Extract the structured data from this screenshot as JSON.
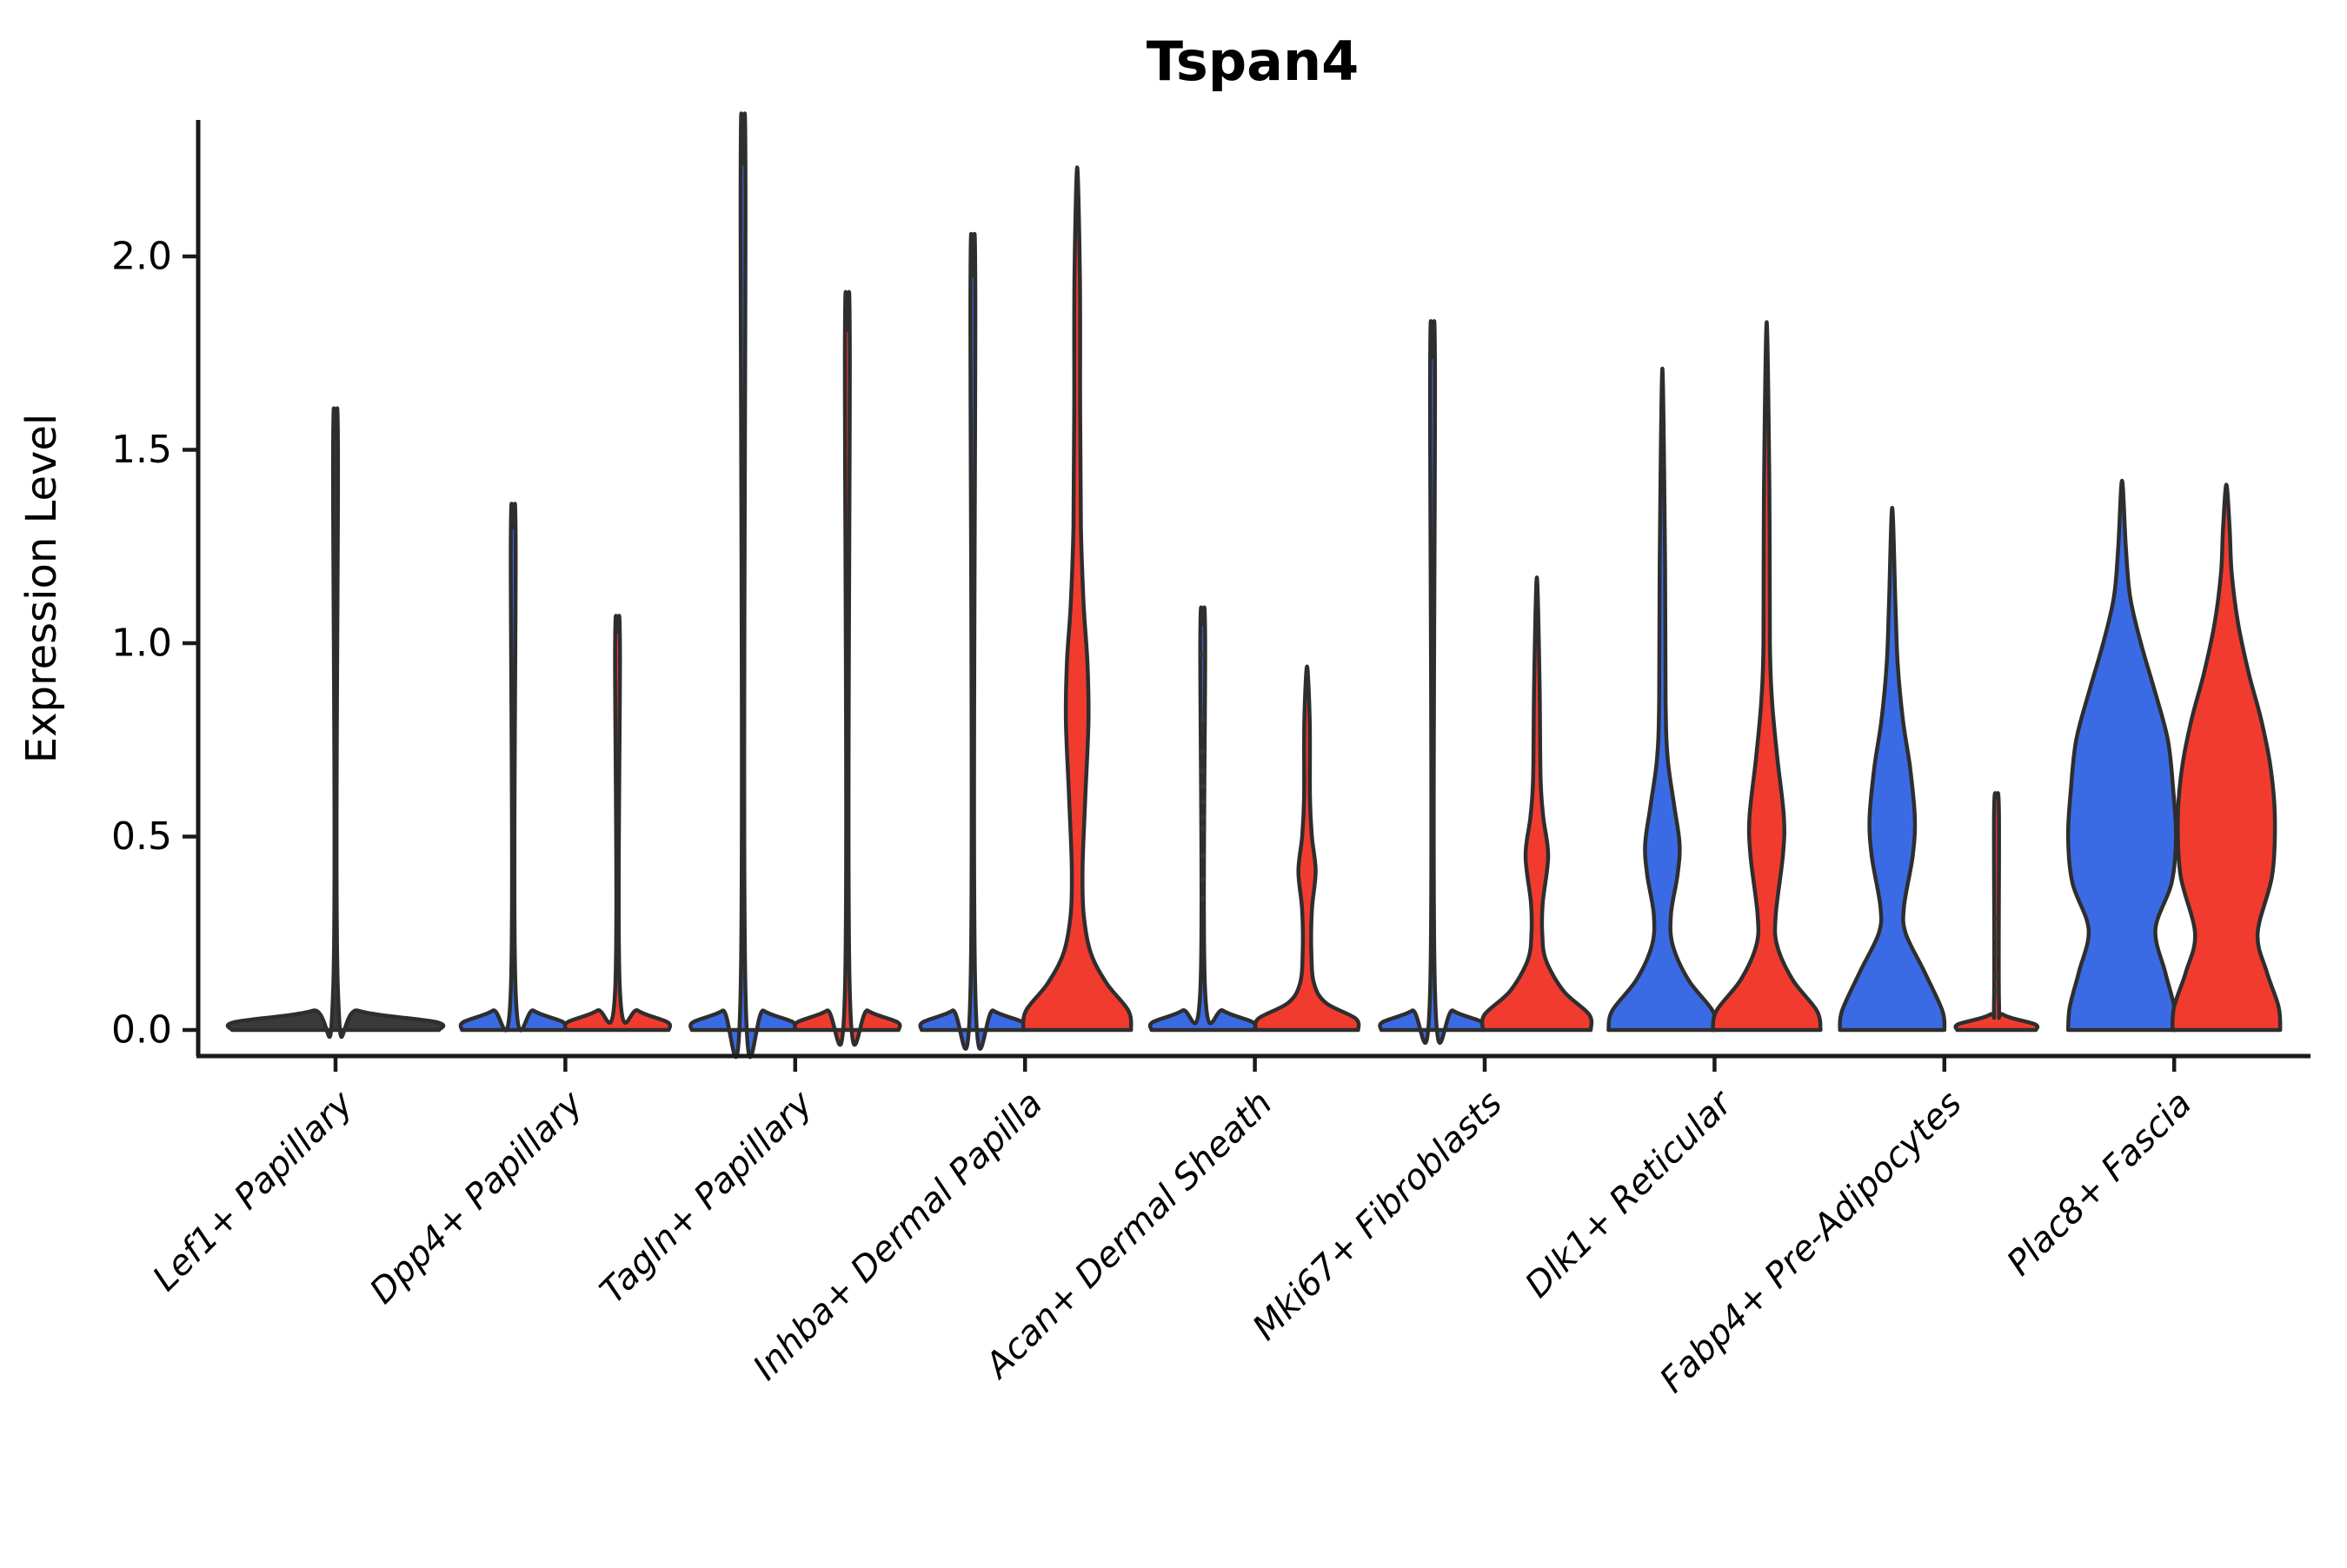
{
  "chart_data": {
    "type": "violin",
    "title": "Tspan4",
    "ylabel": "Expression Level",
    "xlabel": "",
    "grid": false,
    "legend": null,
    "ylim": [
      -0.06,
      2.36
    ],
    "yticks": [
      0.0,
      0.5,
      1.0,
      1.5,
      2.0
    ],
    "ytick_labels": [
      "0.0",
      "0.5",
      "1.0",
      "1.5",
      "2.0"
    ],
    "x_tick_rotation_deg": 45,
    "colors": {
      "blue": "#3B6BE4",
      "red": "#F23B2F",
      "dark": "#3a3a3a",
      "outline": "#2E2E2E",
      "axis": "#1a1a1a"
    },
    "categories": [
      "Lef1+ Papillary",
      "Dpp4+ Papillary",
      "Tagln+ Papillary",
      "Inhba+ Dermal Papilla",
      "Acan+ Dermal Sheath",
      "Mki67+ Fibroblasts",
      "Dlk1+ Reticular",
      "Fabp4+ Pre-Adipocytes",
      "Plac8+ Fascia"
    ],
    "violins": [
      {
        "category_index": 0,
        "category": "Lef1+ Papillary",
        "group": "single",
        "color": "dark",
        "offset_units": 0,
        "max_expression": 1.53,
        "profile": [
          [
            0,
            1.92
          ],
          [
            0.02,
            1.88
          ],
          [
            0.05,
            0.42
          ],
          [
            0.1,
            0.045
          ],
          [
            1.49,
            0.045
          ],
          [
            1.53,
            0
          ]
        ],
        "dots": []
      },
      {
        "category_index": 1,
        "category": "Dpp4+ Papillary",
        "group": "A",
        "color": "blue",
        "offset_units": -1,
        "max_expression": 1.3,
        "profile": [
          [
            0,
            0.95
          ],
          [
            0.02,
            0.93
          ],
          [
            0.05,
            0.38
          ],
          [
            0.1,
            0.045
          ],
          [
            1.26,
            0.045
          ],
          [
            1.3,
            0
          ]
        ],
        "dots": []
      },
      {
        "category_index": 1,
        "category": "Dpp4+ Papillary",
        "group": "B",
        "color": "red",
        "offset_units": 1,
        "max_expression": 1.03,
        "profile": [
          [
            0,
            0.95
          ],
          [
            0.02,
            0.93
          ],
          [
            0.05,
            0.38
          ],
          [
            0.1,
            0.045
          ],
          [
            0.99,
            0.045
          ],
          [
            1.03,
            0
          ]
        ],
        "dots": []
      },
      {
        "category_index": 2,
        "category": "Tagln+ Papillary",
        "group": "A",
        "color": "blue",
        "offset_units": -1,
        "max_expression": 2.24,
        "profile": [
          [
            0,
            0.95
          ],
          [
            0.02,
            0.93
          ],
          [
            0.05,
            0.38
          ],
          [
            0.1,
            0.045
          ],
          [
            2.2,
            0.045
          ],
          [
            2.24,
            0
          ]
        ],
        "dots": []
      },
      {
        "category_index": 2,
        "category": "Tagln+ Papillary",
        "group": "B",
        "color": "red",
        "offset_units": 1,
        "max_expression": 1.81,
        "profile": [
          [
            0,
            0.95
          ],
          [
            0.02,
            0.93
          ],
          [
            0.05,
            0.38
          ],
          [
            0.1,
            0.045
          ],
          [
            1.77,
            0.045
          ],
          [
            1.81,
            0
          ]
        ],
        "dots": []
      },
      {
        "category_index": 3,
        "category": "Inhba+ Dermal Papilla",
        "group": "A",
        "color": "blue",
        "offset_units": -1,
        "max_expression": 1.95,
        "profile": [
          [
            0,
            0.95
          ],
          [
            0.02,
            0.93
          ],
          [
            0.05,
            0.38
          ],
          [
            0.1,
            0.045
          ],
          [
            1.91,
            0.045
          ],
          [
            1.95,
            0
          ]
        ],
        "dots": []
      },
      {
        "category_index": 3,
        "category": "Inhba+ Dermal Papilla",
        "group": "B",
        "color": "red",
        "offset_units": 1,
        "max_expression": 2.23,
        "profile": [
          [
            0,
            1.0
          ],
          [
            0.05,
            0.95
          ],
          [
            0.12,
            0.55
          ],
          [
            0.2,
            0.25
          ],
          [
            0.3,
            0.12
          ],
          [
            0.42,
            0.1
          ],
          [
            0.6,
            0.15
          ],
          [
            0.8,
            0.21
          ],
          [
            0.95,
            0.19
          ],
          [
            1.1,
            0.12
          ],
          [
            1.3,
            0.07
          ],
          [
            1.6,
            0.055
          ],
          [
            1.95,
            0.05
          ],
          [
            2.23,
            0
          ]
        ],
        "dots": []
      },
      {
        "category_index": 4,
        "category": "Acan+ Dermal Sheath",
        "group": "A",
        "color": "blue",
        "offset_units": -1,
        "max_expression": 1.05,
        "profile": [
          [
            0,
            0.95
          ],
          [
            0.02,
            0.93
          ],
          [
            0.05,
            0.38
          ],
          [
            0.1,
            0.045
          ],
          [
            1.01,
            0.045
          ],
          [
            1.05,
            0
          ]
        ],
        "dots": [
          0.34,
          0.39,
          0.45,
          0.52,
          0.55,
          0.59,
          0.63,
          0.67,
          0.72,
          0.8,
          0.97
        ]
      },
      {
        "category_index": 4,
        "category": "Acan+ Dermal Sheath",
        "group": "B",
        "color": "red",
        "offset_units": 1,
        "max_expression": 0.94,
        "profile": [
          [
            0,
            0.95
          ],
          [
            0.03,
            0.9
          ],
          [
            0.07,
            0.35
          ],
          [
            0.12,
            0.13
          ],
          [
            0.2,
            0.08
          ],
          [
            0.31,
            0.09
          ],
          [
            0.41,
            0.16
          ],
          [
            0.5,
            0.09
          ],
          [
            0.6,
            0.055
          ],
          [
            0.8,
            0.05
          ],
          [
            0.94,
            0
          ]
        ],
        "dots": []
      },
      {
        "category_index": 5,
        "category": "Mki67+ Fibroblasts",
        "group": "A",
        "color": "blue",
        "offset_units": -1,
        "max_expression": 1.74,
        "profile": [
          [
            0,
            0.95
          ],
          [
            0.02,
            0.93
          ],
          [
            0.05,
            0.38
          ],
          [
            0.1,
            0.045
          ],
          [
            1.7,
            0.045
          ],
          [
            1.74,
            0
          ]
        ],
        "dots": []
      },
      {
        "category_index": 5,
        "category": "Mki67+ Fibroblasts",
        "group": "B",
        "color": "red",
        "offset_units": 1,
        "max_expression": 1.17,
        "profile": [
          [
            0,
            1.0
          ],
          [
            0.04,
            0.97
          ],
          [
            0.1,
            0.5
          ],
          [
            0.18,
            0.17
          ],
          [
            0.25,
            0.1
          ],
          [
            0.33,
            0.11
          ],
          [
            0.45,
            0.21
          ],
          [
            0.55,
            0.12
          ],
          [
            0.65,
            0.07
          ],
          [
            0.9,
            0.05
          ],
          [
            1.17,
            0
          ]
        ],
        "dots": []
      },
      {
        "category_index": 6,
        "category": "Dlk1+ Reticular",
        "group": "A",
        "color": "blue",
        "offset_units": -1,
        "max_expression": 1.71,
        "profile": [
          [
            0,
            1.0
          ],
          [
            0.05,
            0.93
          ],
          [
            0.13,
            0.48
          ],
          [
            0.22,
            0.19
          ],
          [
            0.3,
            0.16
          ],
          [
            0.4,
            0.28
          ],
          [
            0.48,
            0.32
          ],
          [
            0.58,
            0.22
          ],
          [
            0.7,
            0.1
          ],
          [
            0.85,
            0.06
          ],
          [
            1.2,
            0.05
          ],
          [
            1.71,
            0
          ]
        ],
        "dots": []
      },
      {
        "category_index": 6,
        "category": "Dlk1+ Reticular",
        "group": "B",
        "color": "red",
        "offset_units": 1,
        "max_expression": 1.83,
        "profile": [
          [
            0,
            1.0
          ],
          [
            0.05,
            0.93
          ],
          [
            0.13,
            0.48
          ],
          [
            0.22,
            0.19
          ],
          [
            0.3,
            0.17
          ],
          [
            0.45,
            0.3
          ],
          [
            0.55,
            0.32
          ],
          [
            0.7,
            0.2
          ],
          [
            0.85,
            0.1
          ],
          [
            1.0,
            0.06
          ],
          [
            1.4,
            0.05
          ],
          [
            1.83,
            0
          ]
        ],
        "dots": []
      },
      {
        "category_index": 7,
        "category": "Fabp4+ Pre-Adipocytes",
        "group": "A",
        "color": "blue",
        "offset_units": -1,
        "max_expression": 1.35,
        "profile": [
          [
            0,
            0.97
          ],
          [
            0.05,
            0.93
          ],
          [
            0.15,
            0.6
          ],
          [
            0.25,
            0.25
          ],
          [
            0.32,
            0.22
          ],
          [
            0.45,
            0.38
          ],
          [
            0.55,
            0.42
          ],
          [
            0.68,
            0.33
          ],
          [
            0.8,
            0.2
          ],
          [
            0.95,
            0.1
          ],
          [
            1.1,
            0.06
          ],
          [
            1.35,
            0
          ]
        ],
        "dots": []
      },
      {
        "category_index": 7,
        "category": "Fabp4+ Pre-Adipocytes",
        "group": "B",
        "color": "red",
        "offset_units": 1,
        "max_expression": 0.6,
        "profile": [
          [
            0,
            0.73
          ],
          [
            0.015,
            0.71
          ],
          [
            0.04,
            0.12
          ],
          [
            0.08,
            0.045
          ],
          [
            0.56,
            0.045
          ],
          [
            0.6,
            0
          ]
        ],
        "dots": [
          0.1,
          0.14,
          0.2,
          0.24,
          0.29
        ]
      },
      {
        "category_index": 8,
        "category": "Plac8+ Fascia",
        "group": "A",
        "color": "blue",
        "offset_units": -1,
        "max_expression": 1.42,
        "profile": [
          [
            0,
            1.0
          ],
          [
            0.06,
            0.97
          ],
          [
            0.15,
            0.8
          ],
          [
            0.26,
            0.62
          ],
          [
            0.38,
            0.92
          ],
          [
            0.5,
            1.0
          ],
          [
            0.62,
            0.95
          ],
          [
            0.75,
            0.85
          ],
          [
            0.88,
            0.6
          ],
          [
            1.0,
            0.35
          ],
          [
            1.12,
            0.15
          ],
          [
            1.25,
            0.07
          ],
          [
            1.42,
            0
          ]
        ],
        "dots": []
      },
      {
        "category_index": 8,
        "category": "Plac8+ Fascia",
        "group": "B",
        "color": "red",
        "offset_units": 1,
        "max_expression": 1.41,
        "profile": [
          [
            0,
            1.0
          ],
          [
            0.06,
            0.97
          ],
          [
            0.15,
            0.75
          ],
          [
            0.25,
            0.58
          ],
          [
            0.4,
            0.85
          ],
          [
            0.55,
            0.9
          ],
          [
            0.68,
            0.82
          ],
          [
            0.8,
            0.65
          ],
          [
            0.92,
            0.42
          ],
          [
            1.05,
            0.22
          ],
          [
            1.18,
            0.1
          ],
          [
            1.3,
            0.06
          ],
          [
            1.41,
            0
          ]
        ],
        "dots": []
      }
    ]
  }
}
